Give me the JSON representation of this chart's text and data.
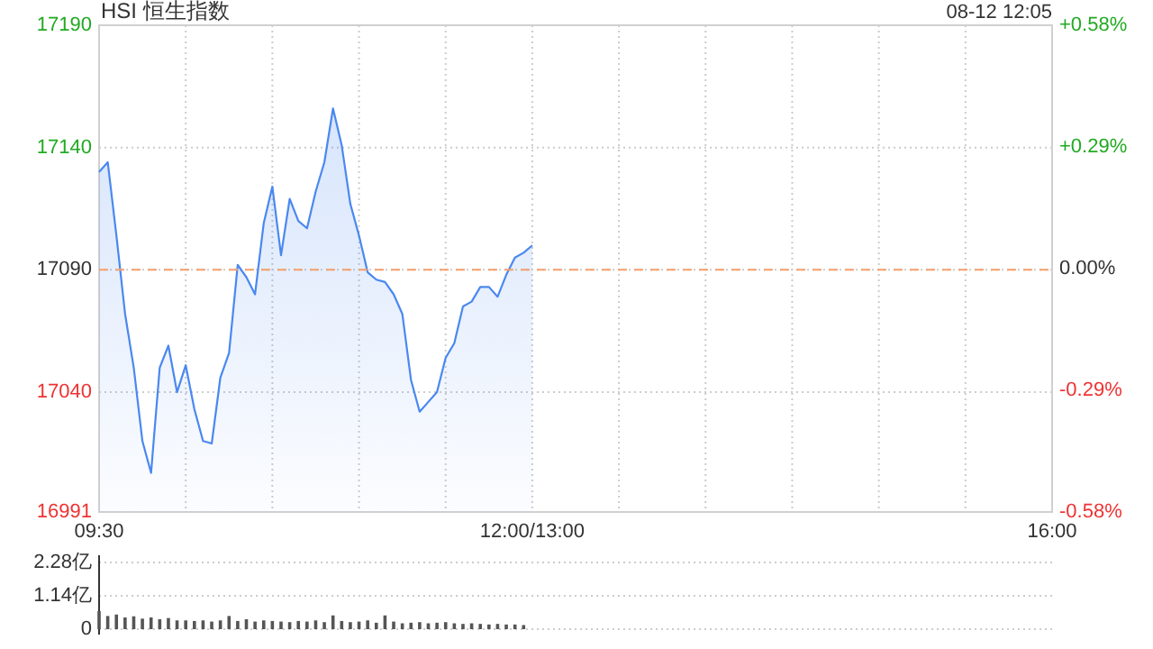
{
  "chart_data": [
    {
      "type": "area",
      "title": "HSI 恒生指数",
      "annotations": [
        "08-12 12:05"
      ],
      "color": "#4a88f0",
      "grid": true,
      "categories": [
        "09:30",
        null,
        null,
        null,
        null,
        null,
        null,
        null,
        null,
        null,
        null,
        null,
        null,
        null,
        null,
        null,
        null,
        null,
        null,
        null,
        null,
        null,
        null,
        null,
        null,
        null,
        null,
        null,
        null,
        null,
        null,
        null,
        null,
        null,
        null,
        null,
        null,
        null,
        null,
        null,
        null,
        null,
        null,
        null,
        null,
        null,
        null,
        null,
        null,
        null,
        "12:00/13:00",
        null,
        null,
        null,
        null,
        null,
        null,
        null,
        null,
        null,
        null,
        null,
        null,
        null,
        null,
        null,
        null,
        null,
        null,
        null,
        null,
        null,
        null,
        null,
        null,
        null,
        null,
        null,
        null,
        null,
        null,
        null,
        null,
        null,
        null,
        null,
        null,
        null,
        null,
        null,
        null,
        null,
        null,
        null,
        null,
        null,
        null,
        null,
        null,
        null,
        null,
        null,
        null,
        null,
        null,
        null,
        null,
        null,
        null,
        null,
        "16:00"
      ],
      "values": [
        17130,
        17134,
        17104,
        17072,
        17050,
        17020,
        17007,
        17050,
        17059,
        17040,
        17051,
        17033,
        17020,
        17019,
        17046,
        17056,
        17092,
        17087,
        17080,
        17109,
        17124,
        17096,
        17119,
        17110,
        17107,
        17122,
        17134,
        17156,
        17141,
        17117,
        17104,
        17089,
        17086,
        17085,
        17080,
        17072,
        17045,
        17032,
        17036,
        17040,
        17054,
        17060,
        17075,
        17077,
        17083,
        17083,
        17079,
        17088,
        17095,
        17097,
        17100,
        null,
        null,
        null,
        null,
        null,
        null,
        null,
        null,
        null,
        null,
        null,
        null,
        null,
        null,
        null,
        null,
        null,
        null,
        null,
        null,
        null,
        null,
        null,
        null,
        null,
        null,
        null,
        null,
        null,
        null,
        null,
        null,
        null,
        null,
        null,
        null,
        null,
        null,
        null,
        null,
        null,
        null,
        null,
        null,
        null,
        null,
        null,
        null,
        null,
        null,
        null,
        null,
        null,
        null,
        null,
        null,
        null,
        null,
        null,
        null
      ],
      "ylim": [
        16991,
        17190
      ],
      "yticks": [
        16991,
        17040,
        17090,
        17140,
        17190
      ],
      "y2lim": [
        -0.58,
        0.58
      ],
      "y2ticks": [
        {
          "value": -0.58,
          "label": "-0.58%"
        },
        {
          "value": -0.29,
          "label": "-0.29%"
        },
        {
          "value": 0,
          "label": "0.00%"
        },
        {
          "value": 0.29,
          "label": "+0.29%"
        },
        {
          "value": 0.58,
          "label": "+0.58%"
        }
      ],
      "ref_lines": [
        {
          "axis": "y",
          "value": 17090,
          "color": "#f5a06e",
          "line_style": "dashed"
        }
      ]
    },
    {
      "type": "bar",
      "color": "#555555",
      "grid": "y",
      "tick_labels": "y",
      "categories": [
        null,
        null,
        null,
        null,
        null,
        null,
        null,
        null,
        null,
        null,
        null,
        null,
        null,
        null,
        null,
        null,
        null,
        null,
        null,
        null,
        null,
        null,
        null,
        null,
        null,
        null,
        null,
        null,
        null,
        null,
        null,
        null,
        null,
        null,
        null,
        null,
        null,
        null,
        null,
        null,
        null,
        null,
        null,
        null,
        null,
        null,
        null,
        null,
        null,
        null,
        null,
        null,
        null,
        null,
        null,
        null,
        null,
        null,
        null,
        null,
        null,
        null,
        null,
        null,
        null,
        null,
        null,
        null,
        null,
        null,
        null,
        null,
        null,
        null,
        null,
        null,
        null,
        null,
        null,
        null,
        null,
        null,
        null,
        null,
        null,
        null,
        null,
        null,
        null,
        null,
        null,
        null,
        null,
        null,
        null,
        null,
        null,
        null,
        null,
        null,
        null,
        null,
        null,
        null,
        null,
        null,
        null,
        null,
        null,
        null,
        null
      ],
      "values": [
        0.62,
        0.45,
        0.5,
        0.4,
        0.44,
        0.36,
        0.4,
        0.34,
        0.38,
        0.3,
        0.3,
        0.28,
        0.3,
        0.26,
        0.3,
        0.45,
        0.28,
        0.34,
        0.26,
        0.3,
        0.28,
        0.26,
        0.24,
        0.28,
        0.26,
        0.3,
        0.24,
        0.47,
        0.28,
        0.24,
        0.26,
        0.3,
        0.22,
        0.47,
        0.26,
        0.2,
        0.22,
        0.24,
        0.2,
        0.22,
        0.24,
        0.2,
        0.18,
        0.2,
        0.18,
        0.16,
        0.18,
        0.16,
        0.16,
        0.14,
        null,
        null,
        null,
        null,
        null,
        null,
        null,
        null,
        null,
        null,
        null,
        null,
        null,
        null,
        null,
        null,
        null,
        null,
        null,
        null,
        null,
        null,
        null,
        null,
        null,
        null,
        null,
        null,
        null,
        null,
        null,
        null,
        null,
        null,
        null,
        null,
        null,
        null,
        null,
        null,
        null,
        null,
        null,
        null,
        null,
        null,
        null,
        null,
        null,
        null,
        null,
        null,
        null,
        null,
        null,
        null,
        null,
        null,
        null,
        null,
        null
      ],
      "ylim": [
        0,
        2.28
      ],
      "yticks": [
        0,
        {
          "value": 1.14,
          "label": "1.14亿"
        },
        {
          "value": 2.28,
          "label": "2.28亿"
        }
      ]
    }
  ]
}
